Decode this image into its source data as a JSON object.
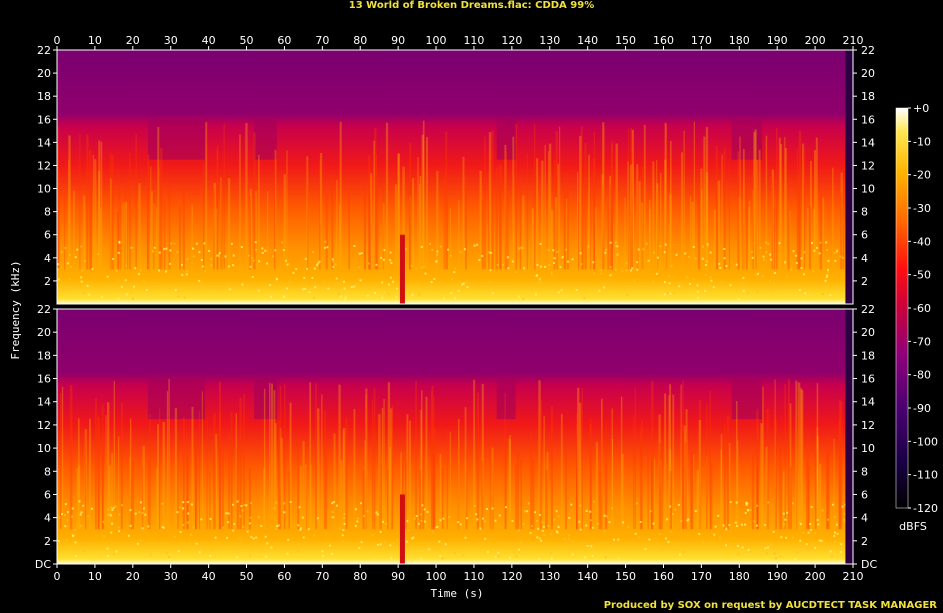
{
  "title": "13 World of Broken Dreams.flac: CDDA 99%",
  "footer": "Produced by SOX on request by AUCDTECT TASK MANAGER",
  "colorbar": {
    "unit": "dBFS",
    "ticks": [
      "+0",
      "-10",
      "-20",
      "-30",
      "-40",
      "-50",
      "-60",
      "-70",
      "-80",
      "-90",
      "-100",
      "-110",
      "-120"
    ],
    "range": [
      -120,
      0
    ],
    "colors": [
      "#000000",
      "#1a0046",
      "#4a0070",
      "#8c007a",
      "#c8003c",
      "#ff1010",
      "#ff6a00",
      "#ffb400",
      "#ffe650",
      "#ffffff"
    ]
  },
  "chart_data": {
    "type": "heatmap",
    "title": "13 World of Broken Dreams.flac: CDDA 99%",
    "xlabel": "Time (s)",
    "ylabel": "Frequency (kHz)",
    "xlim": [
      0,
      210
    ],
    "ylim": [
      0,
      22
    ],
    "x_ticks": [
      0,
      10,
      20,
      30,
      40,
      50,
      60,
      70,
      80,
      90,
      100,
      110,
      120,
      130,
      140,
      150,
      160,
      170,
      180,
      190,
      200,
      210
    ],
    "y_tick_labels": [
      "DC",
      "2",
      "4",
      "6",
      "8",
      "10",
      "12",
      "14",
      "16",
      "18",
      "20",
      "22"
    ],
    "channels": 2,
    "lowpass_cutoff_khz": 16,
    "quiet_segments_s": [
      [
        24,
        39
      ],
      [
        52,
        58
      ],
      [
        116,
        121
      ],
      [
        178,
        186
      ]
    ],
    "transient_s": 91,
    "z_label": "dBFS",
    "z_range": [
      -120,
      0
    ]
  }
}
